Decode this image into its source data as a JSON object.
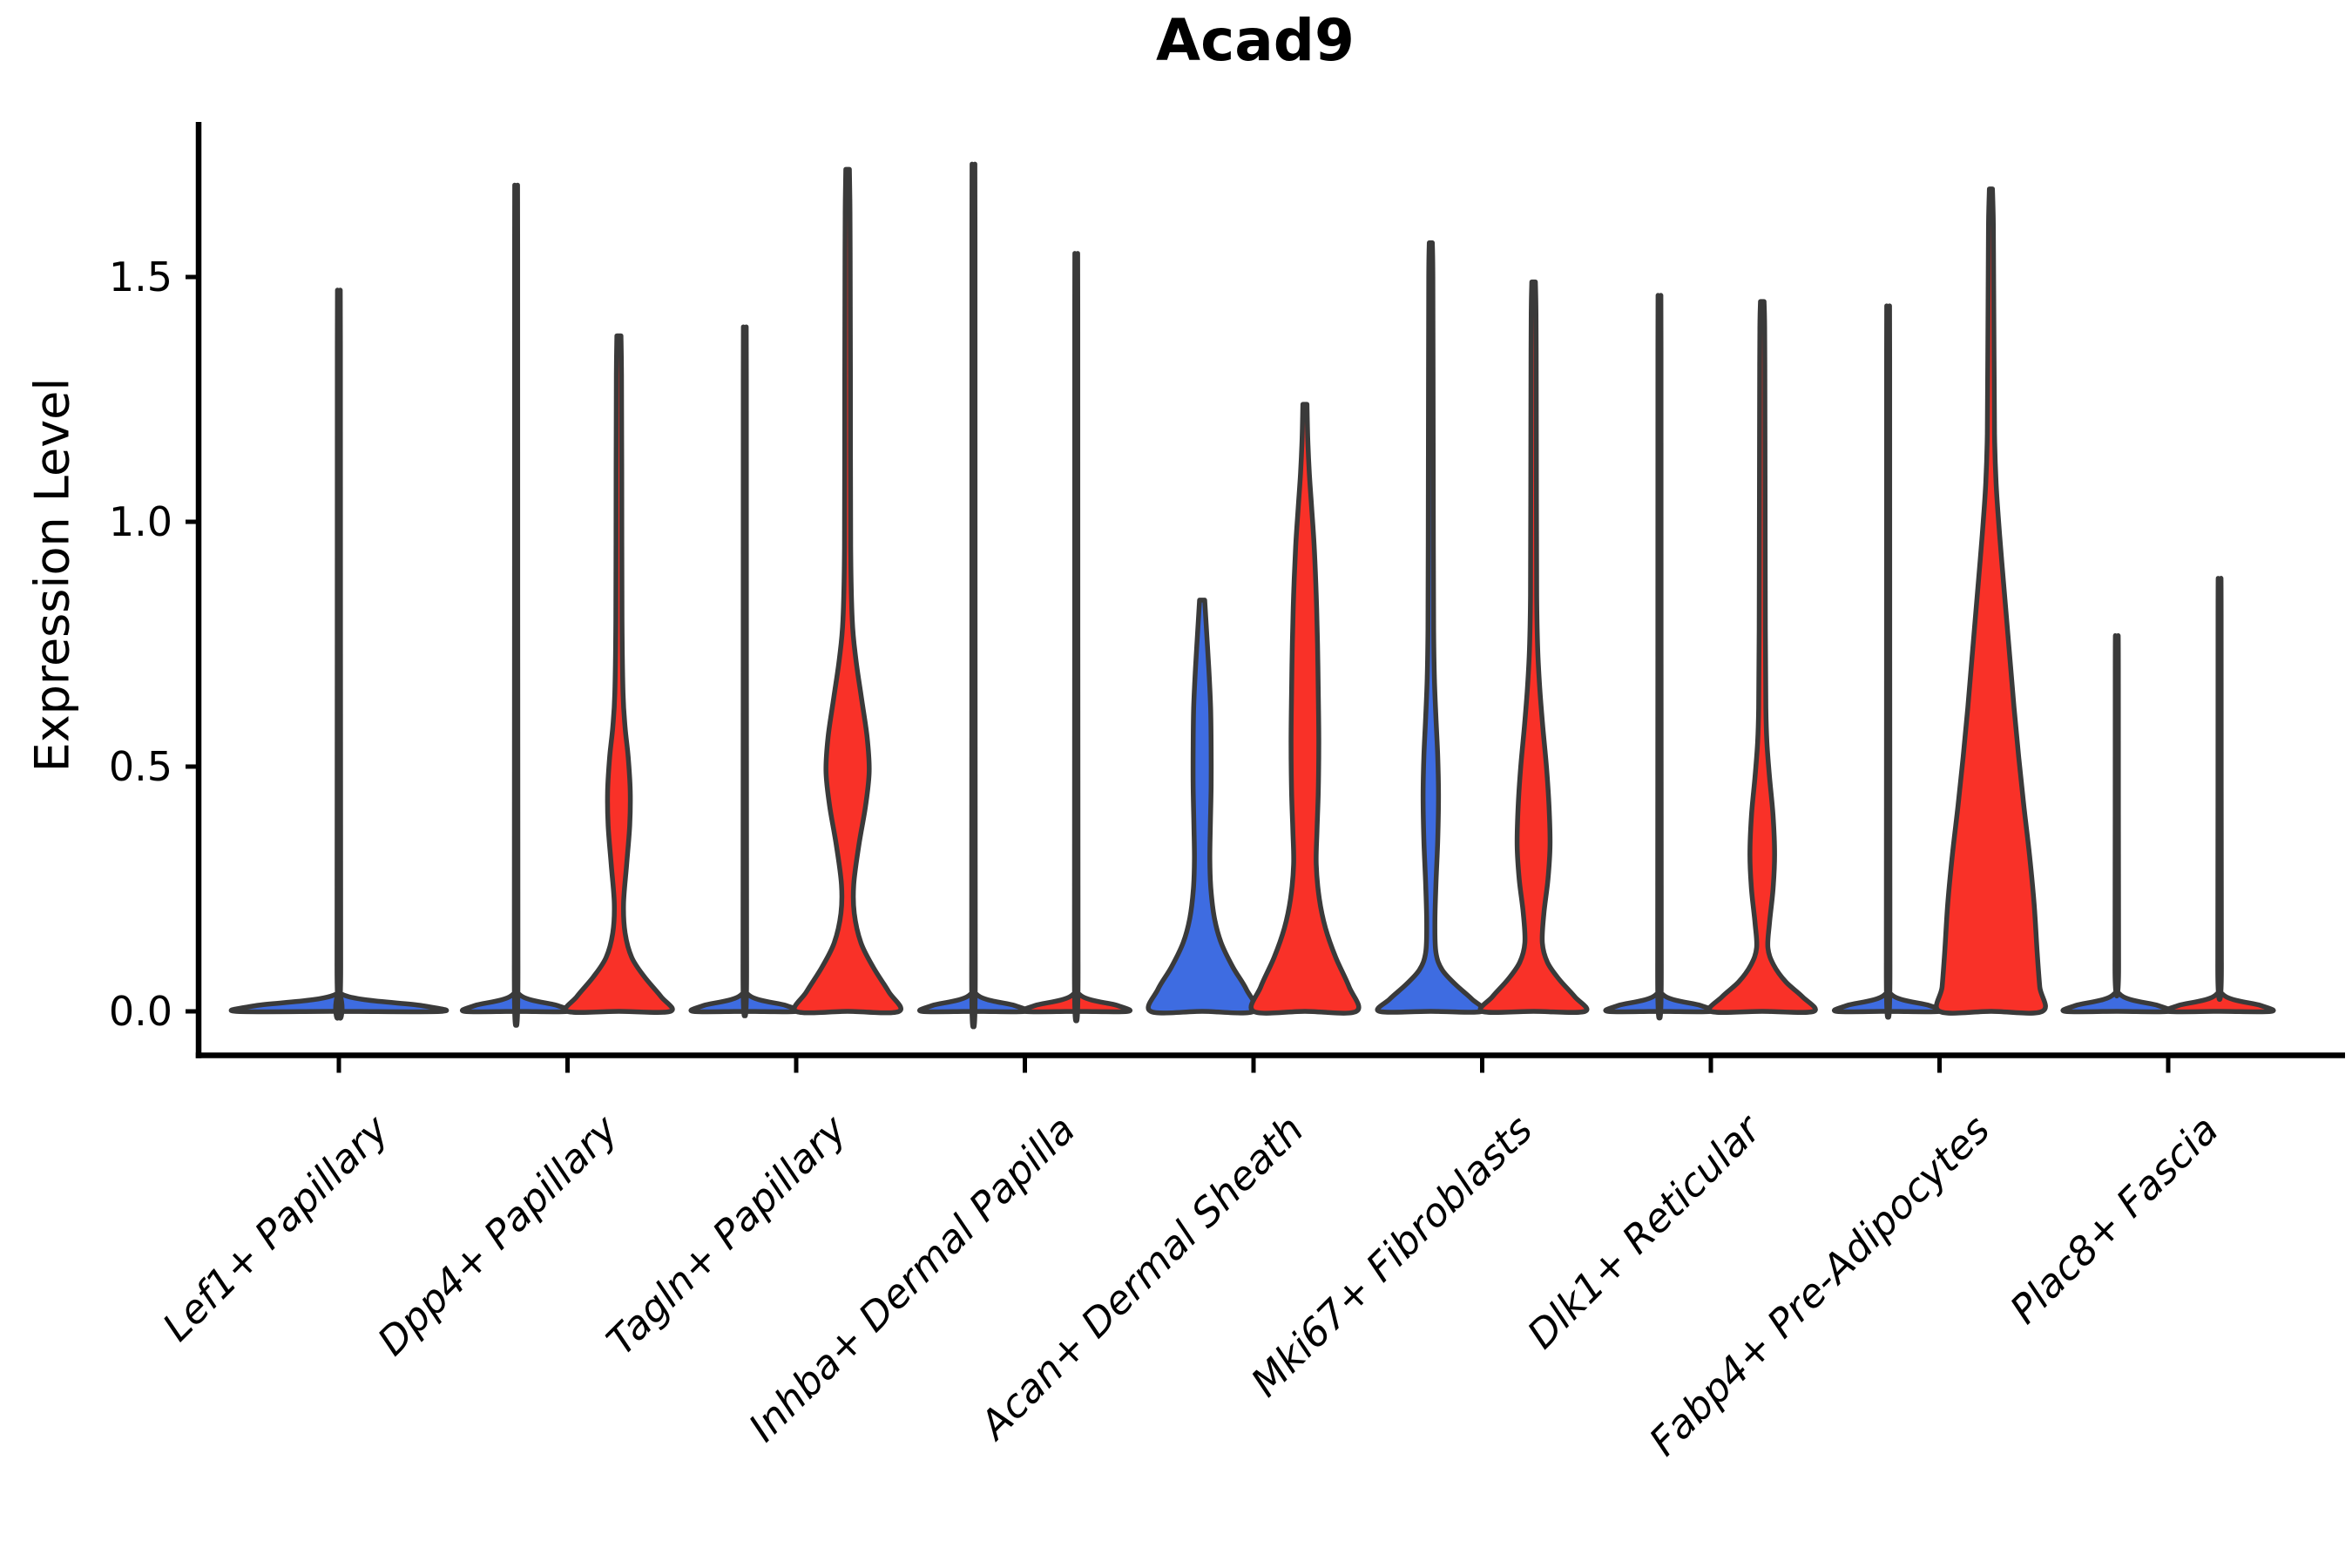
{
  "title": "Acad9",
  "axes": {
    "y_label": "Expression Level",
    "y_tick_labels": [
      "0.0",
      "0.5",
      "1.0",
      "1.5"
    ]
  },
  "colors": {
    "red": "#F93128",
    "blue": "#3E6CE1",
    "edge": "#3A3A3A",
    "text": "#000000",
    "background": "#FFFFFF"
  },
  "chart_data": {
    "type": "violin",
    "title": "Acad9",
    "ylabel": "Expression Level",
    "ylim": [
      -0.09,
      1.82
    ],
    "yticks": [
      0.0,
      0.5,
      1.0,
      1.5
    ],
    "grid": false,
    "legend": "none",
    "x_tick_rotation_deg": 45,
    "categories": [
      "Lef1+ Papillary",
      "Dpp4+ Papillary",
      "Tagln+ Papillary",
      "Inhba+ Dermal Papilla",
      "Acan+ Dermal Sheath",
      "Mki67+ Fibroblasts",
      "Dlk1+ Reticular",
      "Fabp4+ Pre-Adipocytes",
      "Plac8+ Fascia"
    ],
    "violins": [
      {
        "category_index": 0,
        "category": "Lef1+ Papillary",
        "side": "full",
        "color": "blue",
        "width_scale": 2,
        "max_expression": 1.42,
        "width_profile": [
          [
            0,
            1
          ],
          [
            0.012,
            0.8
          ],
          [
            0.035,
            0.03
          ],
          [
            0.1,
            0.018
          ],
          [
            1.36,
            0.015
          ],
          [
            1.42,
            0.012
          ]
        ]
      },
      {
        "category_index": 1,
        "category": "Dpp4+ Papillary",
        "side": "left",
        "color": "blue",
        "max_expression": 1.62,
        "width_profile": [
          [
            0,
            1
          ],
          [
            0.012,
            0.8
          ],
          [
            0.035,
            0.06
          ],
          [
            0.1,
            0.035
          ],
          [
            1.56,
            0.03
          ],
          [
            1.62,
            0.025
          ]
        ]
      },
      {
        "category_index": 1,
        "category": "Dpp4+ Papillary",
        "side": "right",
        "color": "red",
        "max_expression": 1.38,
        "width_profile": [
          [
            0,
            1
          ],
          [
            0.03,
            0.82
          ],
          [
            0.07,
            0.5
          ],
          [
            0.11,
            0.25
          ],
          [
            0.16,
            0.12
          ],
          [
            0.22,
            0.09
          ],
          [
            0.3,
            0.15
          ],
          [
            0.38,
            0.21
          ],
          [
            0.45,
            0.22
          ],
          [
            0.52,
            0.18
          ],
          [
            0.58,
            0.12
          ],
          [
            0.65,
            0.08
          ],
          [
            0.8,
            0.06
          ],
          [
            1.1,
            0.055
          ],
          [
            1.3,
            0.05
          ],
          [
            1.38,
            0.04
          ]
        ]
      },
      {
        "category_index": 2,
        "category": "Tagln+ Papillary",
        "side": "left",
        "color": "blue",
        "max_expression": 1.35,
        "width_profile": [
          [
            0,
            1
          ],
          [
            0.012,
            0.8
          ],
          [
            0.035,
            0.06
          ],
          [
            0.1,
            0.035
          ],
          [
            1.29,
            0.03
          ],
          [
            1.35,
            0.025
          ]
        ]
      },
      {
        "category_index": 2,
        "category": "Tagln+ Papillary",
        "side": "right",
        "color": "red",
        "max_expression": 1.72,
        "width_profile": [
          [
            0,
            1
          ],
          [
            0.04,
            0.8
          ],
          [
            0.09,
            0.5
          ],
          [
            0.14,
            0.26
          ],
          [
            0.2,
            0.13
          ],
          [
            0.26,
            0.12
          ],
          [
            0.34,
            0.22
          ],
          [
            0.42,
            0.35
          ],
          [
            0.49,
            0.42
          ],
          [
            0.56,
            0.38
          ],
          [
            0.64,
            0.27
          ],
          [
            0.72,
            0.16
          ],
          [
            0.8,
            0.09
          ],
          [
            0.95,
            0.06
          ],
          [
            1.3,
            0.055
          ],
          [
            1.55,
            0.05
          ],
          [
            1.65,
            0.045
          ],
          [
            1.72,
            0.035
          ]
        ]
      },
      {
        "category_index": 3,
        "category": "Inhba+ Dermal Papilla",
        "side": "left",
        "color": "blue",
        "max_expression": 1.66,
        "width_profile": [
          [
            0,
            1
          ],
          [
            0.012,
            0.8
          ],
          [
            0.035,
            0.06
          ],
          [
            0.1,
            0.035
          ],
          [
            1.6,
            0.03
          ],
          [
            1.66,
            0.025
          ]
        ]
      },
      {
        "category_index": 3,
        "category": "Inhba+ Dermal Papilla",
        "side": "right",
        "color": "red",
        "max_expression": 1.49,
        "width_profile": [
          [
            0,
            1
          ],
          [
            0.012,
            0.8
          ],
          [
            0.035,
            0.06
          ],
          [
            0.1,
            0.035
          ],
          [
            1.43,
            0.03
          ],
          [
            1.49,
            0.025
          ]
        ]
      },
      {
        "category_index": 4,
        "category": "Acan+ Dermal Sheath",
        "side": "left",
        "color": "blue",
        "max_expression": 0.84,
        "width_profile": [
          [
            0,
            1
          ],
          [
            0.045,
            0.86
          ],
          [
            0.09,
            0.6
          ],
          [
            0.14,
            0.37
          ],
          [
            0.19,
            0.24
          ],
          [
            0.25,
            0.17
          ],
          [
            0.31,
            0.15
          ],
          [
            0.38,
            0.16
          ],
          [
            0.46,
            0.175
          ],
          [
            0.54,
            0.175
          ],
          [
            0.62,
            0.165
          ],
          [
            0.7,
            0.13
          ],
          [
            0.77,
            0.09
          ],
          [
            0.84,
            0.05
          ]
        ]
      },
      {
        "category_index": 4,
        "category": "Acan+ Dermal Sheath",
        "side": "right",
        "color": "red",
        "max_expression": 1.24,
        "width_profile": [
          [
            0,
            1
          ],
          [
            0.05,
            0.86
          ],
          [
            0.11,
            0.6
          ],
          [
            0.17,
            0.4
          ],
          [
            0.23,
            0.28
          ],
          [
            0.3,
            0.22
          ],
          [
            0.37,
            0.235
          ],
          [
            0.45,
            0.26
          ],
          [
            0.55,
            0.27
          ],
          [
            0.65,
            0.26
          ],
          [
            0.75,
            0.245
          ],
          [
            0.85,
            0.22
          ],
          [
            0.95,
            0.18
          ],
          [
            1.03,
            0.13
          ],
          [
            1.1,
            0.085
          ],
          [
            1.17,
            0.055
          ],
          [
            1.24,
            0.04
          ]
        ]
      },
      {
        "category_index": 5,
        "category": "Mki67+ Fibroblasts",
        "side": "left",
        "color": "blue",
        "max_expression": 1.57,
        "width_profile": [
          [
            0,
            1
          ],
          [
            0.025,
            0.8
          ],
          [
            0.055,
            0.48
          ],
          [
            0.085,
            0.22
          ],
          [
            0.12,
            0.1
          ],
          [
            0.18,
            0.08
          ],
          [
            0.26,
            0.1
          ],
          [
            0.35,
            0.135
          ],
          [
            0.44,
            0.15
          ],
          [
            0.52,
            0.135
          ],
          [
            0.6,
            0.1
          ],
          [
            0.68,
            0.07
          ],
          [
            0.78,
            0.055
          ],
          [
            0.95,
            0.05
          ],
          [
            1.25,
            0.045
          ],
          [
            1.5,
            0.04
          ],
          [
            1.57,
            0.03
          ]
        ]
      },
      {
        "category_index": 5,
        "category": "Mki67+ Fibroblasts",
        "side": "right",
        "color": "red",
        "max_expression": 1.49,
        "width_profile": [
          [
            0,
            1
          ],
          [
            0.03,
            0.8
          ],
          [
            0.065,
            0.5
          ],
          [
            0.1,
            0.27
          ],
          [
            0.14,
            0.17
          ],
          [
            0.2,
            0.2
          ],
          [
            0.27,
            0.28
          ],
          [
            0.34,
            0.32
          ],
          [
            0.42,
            0.3
          ],
          [
            0.5,
            0.25
          ],
          [
            0.58,
            0.18
          ],
          [
            0.66,
            0.12
          ],
          [
            0.74,
            0.08
          ],
          [
            0.85,
            0.06
          ],
          [
            1.05,
            0.055
          ],
          [
            1.35,
            0.05
          ],
          [
            1.44,
            0.045
          ],
          [
            1.49,
            0.035
          ]
        ]
      },
      {
        "category_index": 6,
        "category": "Dlk1+ Reticular",
        "side": "left",
        "color": "blue",
        "max_expression": 1.41,
        "width_profile": [
          [
            0,
            1
          ],
          [
            0.012,
            0.8
          ],
          [
            0.035,
            0.06
          ],
          [
            0.1,
            0.035
          ],
          [
            1.35,
            0.03
          ],
          [
            1.41,
            0.025
          ]
        ]
      },
      {
        "category_index": 6,
        "category": "Dlk1+ Reticular",
        "side": "right",
        "color": "red",
        "max_expression": 1.45,
        "width_profile": [
          [
            0,
            1
          ],
          [
            0.03,
            0.78
          ],
          [
            0.06,
            0.46
          ],
          [
            0.095,
            0.22
          ],
          [
            0.13,
            0.11
          ],
          [
            0.18,
            0.14
          ],
          [
            0.25,
            0.21
          ],
          [
            0.32,
            0.24
          ],
          [
            0.4,
            0.21
          ],
          [
            0.48,
            0.14
          ],
          [
            0.55,
            0.09
          ],
          [
            0.62,
            0.07
          ],
          [
            0.78,
            0.06
          ],
          [
            1.05,
            0.055
          ],
          [
            1.32,
            0.05
          ],
          [
            1.41,
            0.045
          ],
          [
            1.45,
            0.035
          ]
        ]
      },
      {
        "category_index": 7,
        "category": "Fabp4+ Pre-Adipocytes",
        "side": "left",
        "color": "blue",
        "max_expression": 1.39,
        "width_profile": [
          [
            0,
            1
          ],
          [
            0.012,
            0.8
          ],
          [
            0.035,
            0.06
          ],
          [
            0.1,
            0.035
          ],
          [
            1.33,
            0.03
          ],
          [
            1.39,
            0.025
          ]
        ]
      },
      {
        "category_index": 7,
        "category": "Fabp4+ Pre-Adipocytes",
        "side": "right",
        "color": "red",
        "max_expression": 1.68,
        "width_profile": [
          [
            0,
            1
          ],
          [
            0.05,
            0.95
          ],
          [
            0.12,
            0.9
          ],
          [
            0.22,
            0.84
          ],
          [
            0.32,
            0.75
          ],
          [
            0.42,
            0.64
          ],
          [
            0.52,
            0.54
          ],
          [
            0.62,
            0.45
          ],
          [
            0.72,
            0.37
          ],
          [
            0.82,
            0.29
          ],
          [
            0.92,
            0.21
          ],
          [
            1,
            0.15
          ],
          [
            1.08,
            0.1
          ],
          [
            1.18,
            0.07
          ],
          [
            1.35,
            0.06
          ],
          [
            1.55,
            0.05
          ],
          [
            1.62,
            0.045
          ],
          [
            1.68,
            0.03
          ]
        ]
      },
      {
        "category_index": 8,
        "category": "Plac8+ Fascia",
        "side": "left",
        "color": "blue",
        "max_expression": 0.76,
        "width_profile": [
          [
            0,
            1
          ],
          [
            0.012,
            0.8
          ],
          [
            0.035,
            0.06
          ],
          [
            0.1,
            0.035
          ],
          [
            0.7,
            0.03
          ],
          [
            0.76,
            0.025
          ]
        ]
      },
      {
        "category_index": 8,
        "category": "Plac8+ Fascia",
        "side": "right",
        "color": "red",
        "max_expression": 0.87,
        "width_profile": [
          [
            0,
            1
          ],
          [
            0.012,
            0.8
          ],
          [
            0.035,
            0.06
          ],
          [
            0.1,
            0.035
          ],
          [
            0.81,
            0.03
          ],
          [
            0.87,
            0.025
          ]
        ]
      }
    ]
  }
}
